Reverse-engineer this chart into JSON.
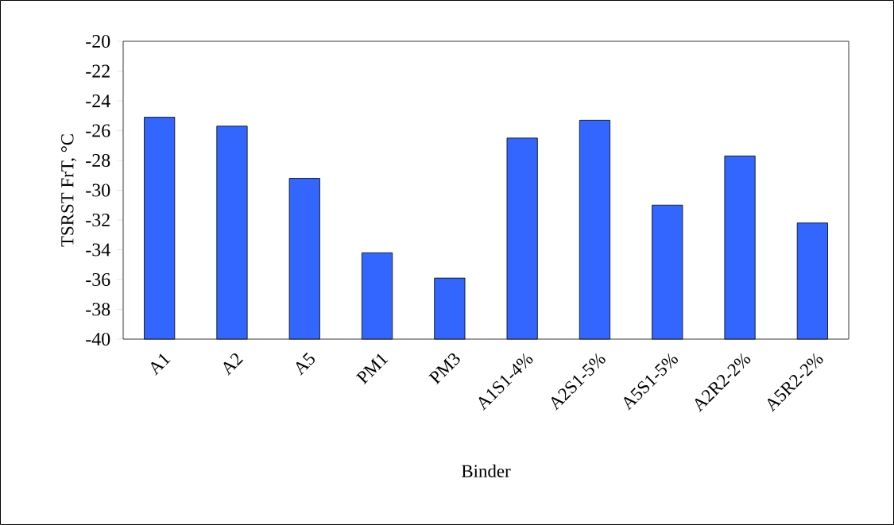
{
  "chart_data": {
    "type": "bar",
    "xlabel": "Binder",
    "ylabel": "TSRST FrT, °C",
    "categories": [
      "A1",
      "A2",
      "A5",
      "PM1",
      "PM3",
      "A1S1-4%",
      "A2S1-5%",
      "A5S1-5%",
      "A2R2-2%",
      "A5R2-2%"
    ],
    "base": [
      -40,
      -40,
      -40,
      -40,
      -40,
      -40,
      -40,
      -40,
      -40,
      -40
    ],
    "values": [
      14.9,
      14.3,
      10.8,
      5.8,
      4.1,
      13.5,
      14.7,
      9.0,
      12.3,
      7.8
    ],
    "color": "#3366ff",
    "ylim": [
      -40,
      -20
    ],
    "yticks": [
      -40,
      -38,
      -36,
      -34,
      -32,
      -30,
      -28,
      -26,
      -24,
      -22,
      -20
    ],
    "grid": false
  }
}
